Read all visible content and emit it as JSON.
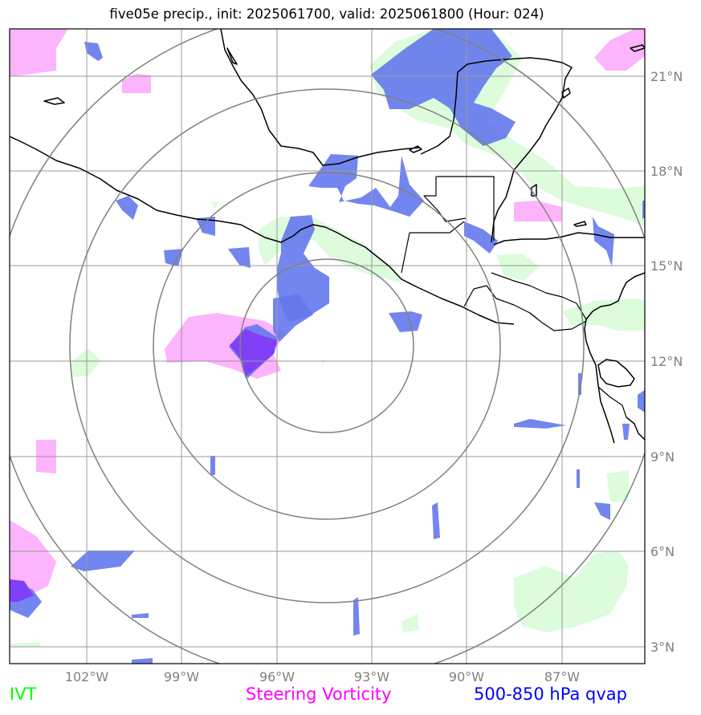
{
  "title": "five05e precip., init: 2025061700, valid: 2025061800 (Hour: 024)",
  "map": {
    "lon_ticks": [
      "102°W",
      "99°W",
      "96°W",
      "93°W",
      "90°W",
      "87°W"
    ],
    "lat_ticks": [
      "21°N",
      "18°N",
      "15°N",
      "12°N",
      "9°N",
      "6°N",
      "3°N"
    ]
  },
  "colors": {
    "ivt": "#00ff00",
    "vorticity": "#ff00ff",
    "qvap": "#0000ff",
    "ivt_fill": "#dcfcdc",
    "vort_fill": "#fcb4fc",
    "qvap_fill": "#6478ec",
    "grid": "#999999",
    "rings": "#808080"
  },
  "legend": {
    "ivt": "IVT",
    "vorticity": "Steering Vorticity",
    "qvap": "500-850 hPa qvap"
  }
}
